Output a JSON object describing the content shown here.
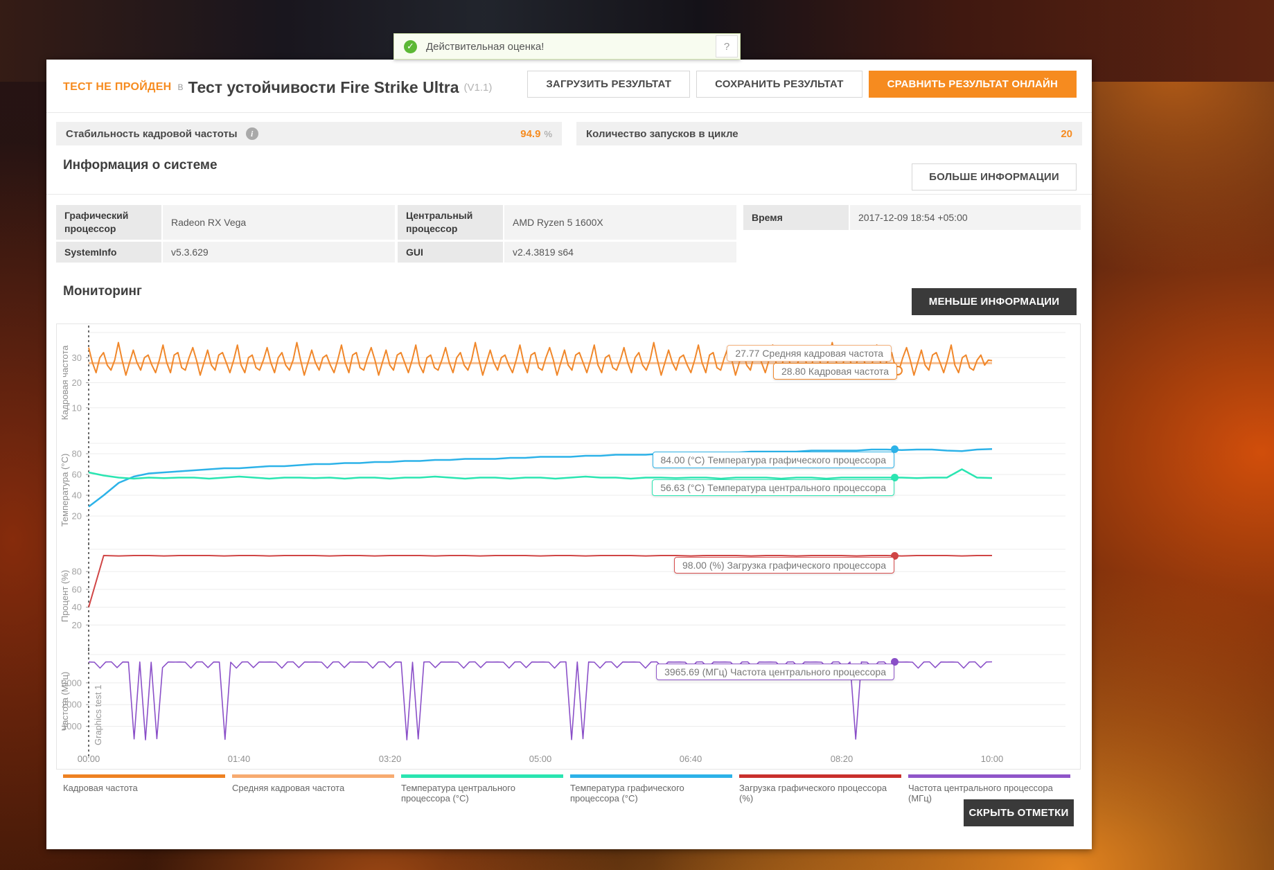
{
  "notification": {
    "text": "Действительная оценка!",
    "help_label": "?",
    "status_color": "#5cb835"
  },
  "header": {
    "status_badge": "ТЕСТ НЕ ПРОЙДЕН",
    "preposition": "В",
    "title": "Тест устойчивости Fire Strike Ultra",
    "version": "(V1.1)",
    "accent_color": "#f68b1f",
    "buttons": {
      "load": "ЗАГРУЗИТЬ РЕЗУЛЬТАТ",
      "save": "СОХРАНИТЬ РЕЗУЛЬТАТ",
      "compare": "СРАВНИТЬ РЕЗУЛЬТАТ ОНЛАЙН"
    }
  },
  "stats": {
    "fps_stability_label": "Стабильность кадровой частоты",
    "fps_stability_value": "94.9",
    "fps_stability_unit": "%",
    "loops_label": "Количество запусков в цикле",
    "loops_value": "20"
  },
  "system_info": {
    "heading": "Информация о системе",
    "more_button": "БОЛЬШЕ ИНФОРМАЦИИ",
    "gpu_label": "Графический процессор",
    "gpu_value": "Radeon RX Vega",
    "cpu_label": "Центральный процессор",
    "cpu_value": "AMD Ryzen 5 1600X",
    "time_label": "Время",
    "time_value": "2017-12-09 18:54 +05:00",
    "systeminfo_label": "SystemInfo",
    "systeminfo_value": "v5.3.629",
    "gui_label": "GUI",
    "gui_value": "v2.4.3819 s64"
  },
  "monitoring": {
    "heading": "Мониторинг",
    "less_button": "МЕНЬШЕ ИНФОРМАЦИИ",
    "hide_marks_button": "СКРЫТЬ ОТМЕТКИ"
  },
  "chart_data": {
    "type": "line",
    "x_labels": [
      "00:00",
      "01:40",
      "03:20",
      "05:00",
      "06:40",
      "08:20",
      "10:00"
    ],
    "x_range_seconds": [
      0,
      600
    ],
    "legend": [
      {
        "label": "Кадровая частота",
        "color": "#ee8122"
      },
      {
        "label": "Средняя кадровая частота",
        "color": "#f7ab70"
      },
      {
        "label": "Температура центрального процессора (°C)",
        "color": "#2ae5b1"
      },
      {
        "label": "Температура графического процессора (°C)",
        "color": "#2cb2e8"
      },
      {
        "label": "Загрузка графического процессора (%)",
        "color": "#c9302c"
      },
      {
        "label": "Частота центрального процессора (МГц)",
        "color": "#8f55c9"
      }
    ],
    "charts": [
      {
        "ylabel": "Кадровая частота",
        "ylim": [
          0,
          40
        ],
        "yticks": [
          10,
          20,
          30
        ],
        "tooltips": [
          {
            "text": "27.77 Средняя кадровая частота",
            "color": "#f5b27d"
          },
          {
            "text": "28.80 Кадровая частота",
            "color": "#f0872a"
          }
        ],
        "series": [
          {
            "name": "Средняя кадровая частота",
            "color": "#f8bd8d",
            "width": 3,
            "values": [
              27.77,
              27.77
            ]
          },
          {
            "name": "Кадровая частота",
            "color": "#f0872a",
            "width": 2,
            "values": [
              34,
              28,
              24,
              30,
              32,
              27,
              25,
              29,
              36,
              29,
              23,
              28,
              33,
              28,
              25,
              30,
              31,
              27,
              24,
              29,
              35,
              28,
              24,
              31,
              32,
              26,
              25,
              30,
              34,
              29,
              23,
              28,
              33,
              27,
              25,
              31,
              32,
              28,
              24,
              29,
              35,
              27,
              24,
              30,
              31,
              26,
              25,
              29,
              34,
              28,
              24,
              30,
              32,
              27,
              25,
              29,
              36,
              29,
              23,
              28,
              33,
              28,
              25,
              30,
              31,
              27,
              24,
              29,
              35,
              28,
              24,
              31,
              32,
              26,
              25,
              30,
              34,
              29,
              23,
              28,
              33,
              27,
              25,
              31,
              32,
              28,
              24,
              29,
              35,
              27,
              24,
              30,
              31,
              26,
              25,
              29,
              34,
              28,
              24,
              30,
              32,
              27,
              25,
              29,
              36,
              29,
              23,
              28,
              33,
              28,
              25,
              30,
              31,
              27,
              24,
              29,
              35,
              28,
              24,
              31,
              32,
              26,
              25,
              30,
              34,
              29,
              23,
              28,
              33,
              27,
              25,
              31,
              32,
              28,
              24,
              29,
              35,
              27,
              24,
              30,
              31,
              26,
              25,
              29,
              34,
              28,
              24,
              30,
              32,
              27,
              25,
              29,
              36,
              29,
              23,
              28,
              33,
              28,
              25,
              30,
              31,
              27,
              24,
              29,
              35,
              28,
              24,
              31,
              32,
              26,
              25,
              30,
              34,
              29,
              23,
              28,
              33,
              27,
              25,
              31,
              32,
              28,
              24,
              29,
              35,
              27,
              24,
              30,
              31,
              26,
              25,
              29,
              34,
              28,
              24,
              30,
              32,
              27,
              25,
              29,
              36,
              29,
              23,
              28,
              33,
              28,
              25,
              30,
              31,
              27,
              24,
              29,
              35,
              28,
              24,
              31,
              32,
              26,
              25,
              30,
              34,
              29,
              23,
              28,
              33,
              27,
              25,
              31,
              32,
              28,
              24,
              29,
              35,
              27,
              24,
              30,
              31,
              26,
              25,
              29,
              31,
              27,
              29,
              28.8
            ]
          }
        ]
      },
      {
        "ylabel": "Температура (°C)",
        "ylim": [
          0,
          90
        ],
        "yticks": [
          20,
          40,
          60,
          80
        ],
        "tooltips": [
          {
            "text": "84.00 (°C) Температура графического процессора",
            "color": "#2cb2e8"
          },
          {
            "text": "56.63 (°C) Температура центрального процессора",
            "color": "#2ae5b1"
          }
        ],
        "series": [
          {
            "name": "Температура графического процессора (°C)",
            "color": "#2cb2e8",
            "width": 2.5,
            "values": [
              29,
              40,
              52,
              58,
              61,
              62,
              63,
              64,
              65,
              66,
              66,
              67,
              68,
              68,
              69,
              70,
              70,
              71,
              71,
              72,
              72,
              73,
              73,
              74,
              74,
              75,
              75,
              75,
              76,
              76,
              77,
              77,
              77,
              78,
              78,
              79,
              79,
              79,
              80,
              80,
              80,
              81,
              81,
              81,
              82,
              82,
              82,
              82,
              83,
              83,
              83,
              83,
              84,
              84,
              83.5,
              84,
              84,
              83,
              82.5,
              84,
              84.5
            ]
          },
          {
            "name": "Температура центрального процессора (°C)",
            "color": "#2ae5b1",
            "width": 2.5,
            "values": [
              62,
              59,
              57,
              56,
              57,
              56.5,
              57,
              57,
              56,
              57,
              58,
              57,
              56,
              57,
              57,
              56.5,
              57,
              56,
              57,
              57,
              56,
              57,
              57,
              58,
              57,
              56,
              57,
              57,
              56,
              57,
              57,
              56,
              57,
              58,
              57,
              57,
              56,
              57,
              57,
              56.5,
              57,
              57,
              56,
              57,
              57,
              57,
              56,
              57,
              57,
              56,
              57,
              57,
              57,
              57,
              57,
              56.5,
              57,
              57,
              65,
              57,
              56.63
            ]
          }
        ]
      },
      {
        "ylabel": "Процент (%)",
        "ylim": [
          0,
          105
        ],
        "yticks": [
          20,
          40,
          60,
          80
        ],
        "tooltips": [
          {
            "text": "98.00 (%) Загрузка графического процессора",
            "color": "#d84c4c"
          }
        ],
        "series": [
          {
            "name": "Загрузка графического процессора (%)",
            "color": "#d04545",
            "width": 2,
            "values": [
              40,
              98,
              97.5,
              98,
              98,
              97.5,
              98,
              98,
              98,
              97.5,
              98,
              98,
              97.5,
              98,
              98,
              98,
              97.5,
              98,
              98,
              97.5,
              98,
              98,
              98,
              97.5,
              98,
              98,
              97.5,
              98,
              98,
              98,
              97.5,
              98,
              98,
              97.5,
              98,
              98,
              98,
              97.5,
              98,
              98,
              97.5,
              98,
              98,
              98,
              97.5,
              98,
              98,
              97.5,
              98,
              98,
              98,
              97.5,
              98,
              98,
              97.5,
              98,
              98,
              98,
              97.5,
              98,
              98
            ]
          }
        ]
      },
      {
        "ylabel": "Частота (МГц)",
        "ylim": [
          0,
          4300
        ],
        "yticks": [
          1000,
          2000,
          3000
        ],
        "annotation": "Graphics test 1",
        "tooltips": [
          {
            "text": "3965.69 (МГц) Частота центрального процессора",
            "color": "#8f55c9"
          }
        ],
        "series": [
          {
            "name": "Частота центрального процессора (МГц)",
            "color": "#8a4fc8",
            "width": 1.6,
            "values": [
              3960,
              3950,
              3680,
              3960,
              3965,
              3700,
              3960,
              3955,
              420,
              3960,
              380,
              3950,
              430,
              3700,
              3960,
              3955,
              3960,
              3950,
              3680,
              3960,
              3965,
              3700,
              3960,
              3955,
              400,
              3950,
              3680,
              3960,
              3965,
              3700,
              3960,
              3955,
              3960,
              3950,
              3680,
              3960,
              3965,
              3700,
              3960,
              3955,
              3960,
              3950,
              3680,
              3960,
              3965,
              3700,
              3960,
              3955,
              3960,
              3950,
              3680,
              3960,
              3965,
              3700,
              3960,
              3955,
              380,
              3950,
              420,
              3960,
              3965,
              3700,
              3960,
              3955,
              3960,
              3950,
              3680,
              3960,
              3965,
              3700,
              3960,
              3955,
              3960,
              3950,
              3680,
              3960,
              3965,
              3700,
              3960,
              3955,
              3960,
              3950,
              3680,
              3960,
              3965,
              390,
              3960,
              430,
              3960,
              3950,
              3680,
              3960,
              3965,
              3700,
              3960,
              3955,
              3960,
              3950,
              3680,
              3960,
              3965,
              3700,
              3960,
              3955,
              3960,
              3950,
              3680,
              3960,
              3965,
              3700,
              3960,
              3955,
              3960,
              3950,
              3680,
              3960,
              3965,
              3700,
              3960,
              3955,
              3960,
              3950,
              3680,
              3960,
              3965,
              3700,
              3960,
              3955,
              3960,
              3950,
              3680,
              3960,
              3965,
              3700,
              3960,
              410,
              3960,
              3950,
              3680,
              3960,
              3965,
              3700,
              3960,
              3955,
              3960,
              3950,
              3680,
              3960,
              3965,
              3700,
              3960,
              3955,
              3960,
              3950,
              3680,
              3960,
              3965,
              3700,
              3960,
              3965.69
            ]
          }
        ]
      }
    ]
  }
}
